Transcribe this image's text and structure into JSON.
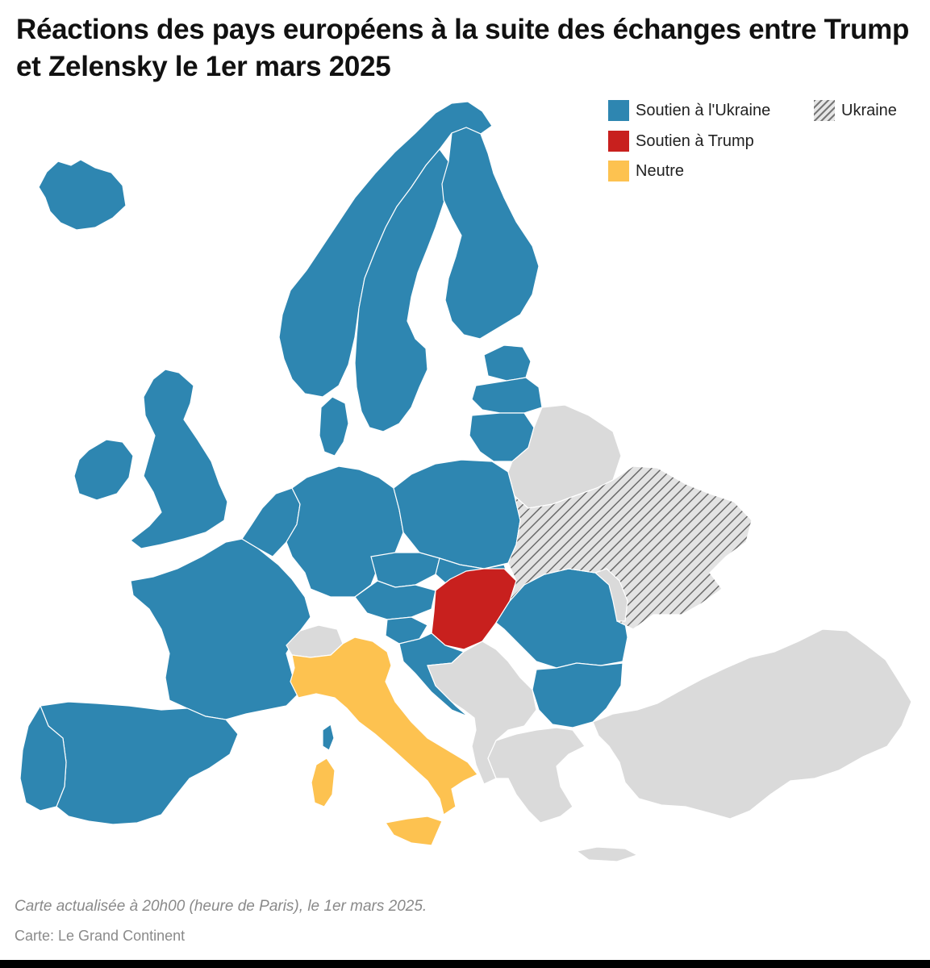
{
  "title": "Réactions des pays européens à la suite des échanges entre Trump et Zelensky le 1er mars 2025",
  "legend": [
    {
      "label": "Soutien à l'Ukraine",
      "color": "#2e86b1"
    },
    {
      "label": "Soutien à Trump",
      "color": "#c8201e"
    },
    {
      "label": "Neutre",
      "color": "#fdc250"
    },
    {
      "label": "Ukraine",
      "pattern": "hatched-grey"
    }
  ],
  "colors": {
    "support_ukraine": "#2e86b1",
    "support_trump": "#c8201e",
    "neutral": "#fdc250",
    "no_data": "#dadada",
    "background": "#ffffff"
  },
  "footnote": "Carte actualisée à 20h00 (heure de Paris), le 1er mars 2025.",
  "source": "Carte: Le Grand Continent"
}
